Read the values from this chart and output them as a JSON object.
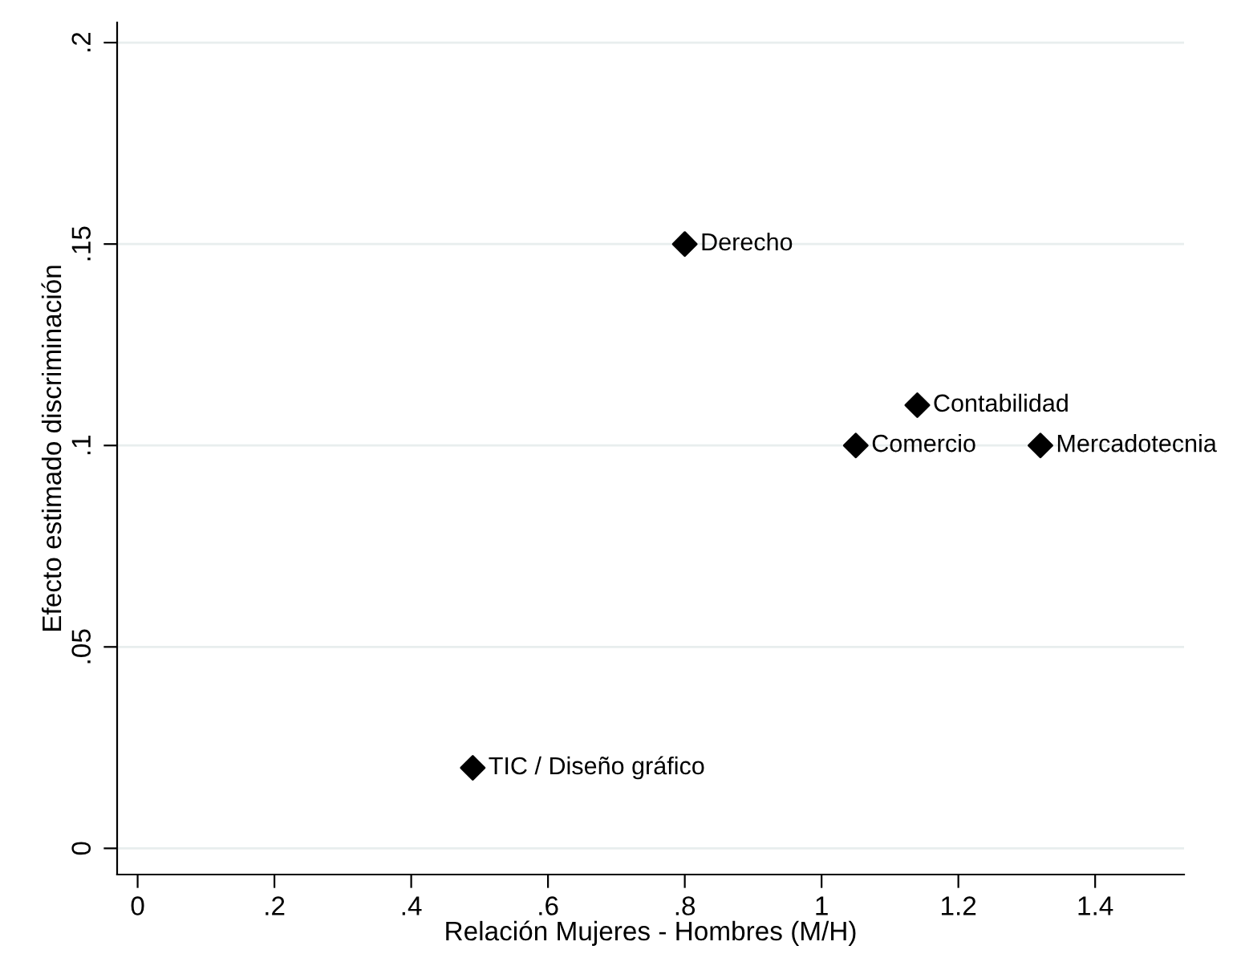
{
  "chart_data": {
    "type": "scatter",
    "xlabel": "Relación Mujeres - Hombres (M/H)",
    "ylabel": "Efecto estimado discriminación",
    "x": [
      0.8,
      1.14,
      1.05,
      1.32,
      0.49
    ],
    "series": [
      {
        "color": "#000000",
        "values": [
          0.15,
          0.11,
          0.1,
          0.1,
          0.02
        ]
      }
    ],
    "annotations": [
      {
        "text": "Derecho",
        "x": 0.8,
        "y": 0.15
      },
      {
        "text": "Contabilidad",
        "x": 1.14,
        "y": 0.11
      },
      {
        "text": "Comercio",
        "x": 1.05,
        "y": 0.1
      },
      {
        "text": "Mercadotecnia",
        "x": 1.32,
        "y": 0.1
      },
      {
        "text": "TIC / Diseño gráfico",
        "x": 0.49,
        "y": 0.02
      }
    ],
    "xlim": [
      -0.03,
      1.53
    ],
    "ylim": [
      -0.0065,
      0.205
    ],
    "xticks": [
      0,
      {
        "value": 0.2,
        "label": ".2"
      },
      {
        "value": 0.4,
        "label": ".4"
      },
      {
        "value": 0.6,
        "label": ".6"
      },
      {
        "value": 0.8,
        "label": ".8"
      },
      1,
      1.2,
      1.4
    ],
    "yticks": [
      0,
      {
        "value": 0.05,
        "label": ".05"
      },
      {
        "value": 0.1,
        "label": ".1"
      },
      {
        "value": 0.15,
        "label": ".15"
      },
      {
        "value": 0.2,
        "label": ".2"
      }
    ],
    "grid": "y",
    "marker": "diamond"
  }
}
